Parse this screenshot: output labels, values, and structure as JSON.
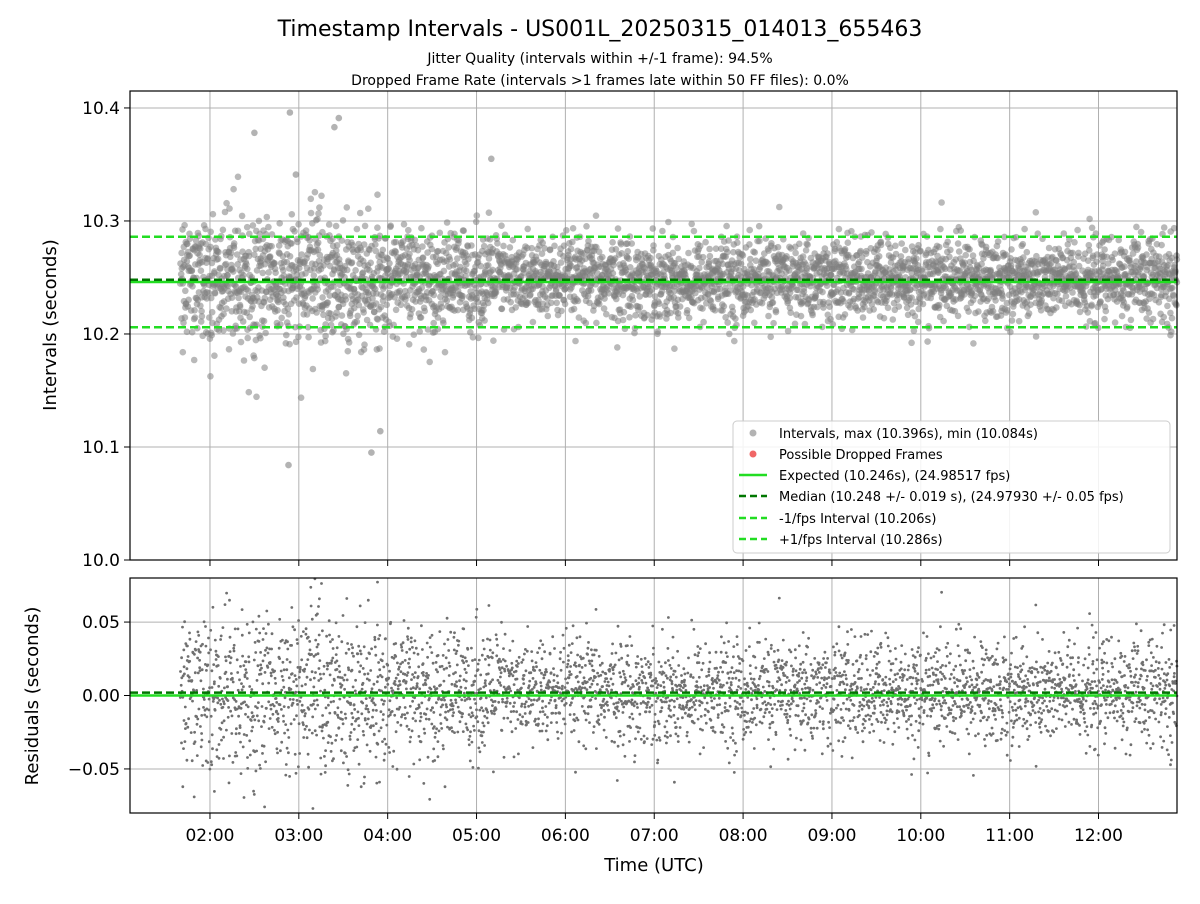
{
  "chart_data": [
    {
      "type": "scatter",
      "title": "Timestamp Intervals - US001L_20250315_014013_655463",
      "subtitle_lines": [
        "Jitter Quality (intervals within +/-1 frame): 94.5%",
        "Dropped Frame Rate (intervals >1 frames late within 50 FF files): 0.0%"
      ],
      "xlabel": "",
      "ylabel": "Intervals (seconds)",
      "xlim": [
        "01:06",
        "12:53"
      ],
      "ylim": [
        10.0,
        10.415
      ],
      "yticks": [
        10.0,
        10.1,
        10.2,
        10.3,
        10.4
      ],
      "ytick_labels": [
        "10.0",
        "10.1",
        "10.2",
        "10.3",
        "10.4"
      ],
      "grid": true,
      "legend_position": "lower-right",
      "reference_lines": [
        {
          "name": "Expected (10.246s), (24.98517 fps)",
          "y": 10.246,
          "style": "solid",
          "color": "#22dd22"
        },
        {
          "name": "Median (10.248 +/- 0.019 s), (24.97930 +/- 0.05 fps)",
          "y": 10.248,
          "style": "dashed",
          "color": "#007700"
        },
        {
          "name": "-1/fps Interval (10.206s)",
          "y": 10.206,
          "style": "dashed",
          "color": "#22dd22"
        },
        {
          "name": "+1/fps Interval (10.286s)",
          "y": 10.286,
          "style": "dashed",
          "color": "#22dd22"
        }
      ],
      "series": [
        {
          "name": "Intervals, max (10.396s), min (10.084s)",
          "color": "#808080",
          "x_range": [
            "01:40",
            "12:53"
          ],
          "center": 10.248,
          "spread": 0.019,
          "max": 10.396,
          "min": 10.084
        },
        {
          "name": "Possible Dropped Frames",
          "color": "#ee5555",
          "points": []
        }
      ],
      "notable_points": [
        {
          "x": "02:54",
          "y": 10.396
        },
        {
          "x": "03:27",
          "y": 10.391
        },
        {
          "x": "03:24",
          "y": 10.383
        },
        {
          "x": "02:30",
          "y": 10.378
        },
        {
          "x": "02:53",
          "y": 10.084
        },
        {
          "x": "03:49",
          "y": 10.095
        },
        {
          "x": "03:55",
          "y": 10.114
        },
        {
          "x": "05:10",
          "y": 10.355
        },
        {
          "x": "02:58",
          "y": 10.341
        }
      ]
    },
    {
      "type": "scatter",
      "title": "",
      "xlabel": "Time (UTC)",
      "ylabel": "Residuals (seconds)",
      "xlim": [
        "01:06",
        "12:53"
      ],
      "ylim": [
        -0.08,
        0.08
      ],
      "yticks": [
        -0.05,
        0.0,
        0.05
      ],
      "ytick_labels": [
        "−0.05",
        "0.00",
        "0.05"
      ],
      "xtick_labels": [
        "02:00",
        "03:00",
        "04:00",
        "05:00",
        "06:00",
        "07:00",
        "08:00",
        "09:00",
        "10:00",
        "11:00",
        "12:00"
      ],
      "grid": true,
      "reference_lines": [
        {
          "y": 0.0,
          "style": "solid",
          "color": "#22dd22"
        },
        {
          "y": 0.002,
          "style": "dashed",
          "color": "#007700"
        }
      ],
      "series": [
        {
          "color": "#707070",
          "x_range": [
            "01:40",
            "12:53"
          ],
          "center": 0.002,
          "spread": 0.019
        }
      ]
    }
  ]
}
